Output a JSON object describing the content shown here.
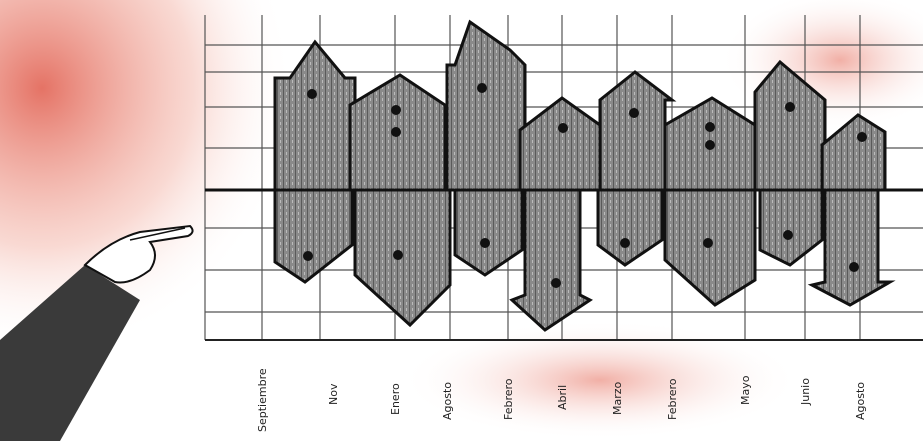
{
  "axis": {
    "labels": [
      "Septiembre",
      "Nov",
      "Enero",
      "Agosto",
      "Febrero",
      "Abril",
      "Marzo",
      "Febrero",
      "Mayo",
      "Junio",
      "Agosto"
    ]
  }
}
